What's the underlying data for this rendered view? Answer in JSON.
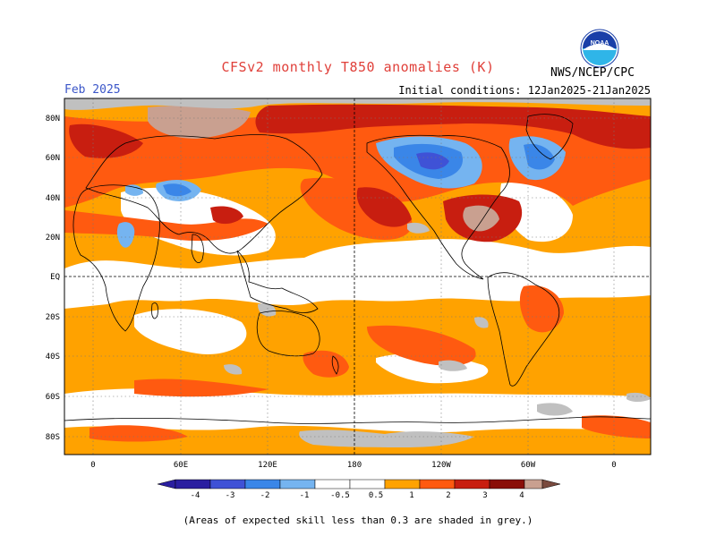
{
  "header": {
    "title": "CFSv2 monthly T850 anomalies (K)",
    "month": "Feb 2025",
    "agency": "NWS/NCEP/CPC",
    "initial_conditions": "Initial conditions: 12Jan2025-21Jan2025",
    "logo_text": "NOAA"
  },
  "axes": {
    "lat_labels": [
      "80N",
      "60N",
      "40N",
      "20N",
      "EQ",
      "20S",
      "40S",
      "60S",
      "80S"
    ],
    "lon_labels": [
      "0",
      "60E",
      "120E",
      "180",
      "120W",
      "60W",
      "0"
    ]
  },
  "colorbar": {
    "labels": [
      "-4",
      "-3",
      "-2",
      "-1",
      "-0.5",
      "0.5",
      "1",
      "2",
      "3",
      "4"
    ],
    "colors": [
      "#2a1ea0",
      "#3f52d6",
      "#3a86e8",
      "#75b4f0",
      "#ffffff",
      "#ffa200",
      "#ff5a10",
      "#c81e10",
      "#8a0e08",
      "#c9a090",
      "#7a4a3e"
    ]
  },
  "footnote": "(Areas of expected skill less than 0.3 are shaded in grey.)",
  "legend_colors": {
    "skill_grey": "#c0c0c0"
  }
}
